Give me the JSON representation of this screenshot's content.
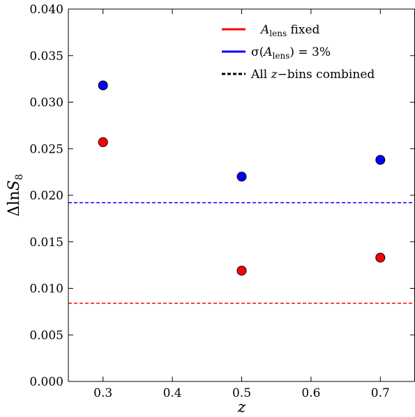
{
  "chart_data": {
    "type": "scatter",
    "xlabel": "z",
    "ylabel": "ΔlnS",
    "ylabel_subscript": "8",
    "xlim": [
      0.25,
      0.75
    ],
    "ylim": [
      0.0,
      0.04
    ],
    "xticks": [
      0.3,
      0.4,
      0.5,
      0.6,
      0.7
    ],
    "xtick_labels": [
      "0.3",
      "0.4",
      "0.5",
      "0.6",
      "0.7"
    ],
    "yticks": [
      0.0,
      0.005,
      0.01,
      0.015,
      0.02,
      0.025,
      0.03,
      0.035,
      0.04
    ],
    "ytick_labels": [
      "0.000",
      "0.005",
      "0.010",
      "0.015",
      "0.020",
      "0.025",
      "0.030",
      "0.035",
      "0.040"
    ],
    "grid": false,
    "legend_position": "top-right",
    "series": [
      {
        "legend_key": "fixed",
        "color": "#ff0000",
        "x": [
          0.3,
          0.5,
          0.7
        ],
        "y": [
          0.0257,
          0.0119,
          0.0133
        ]
      },
      {
        "legend_key": "sigma",
        "color": "#0000ff",
        "x": [
          0.3,
          0.5,
          0.7
        ],
        "y": [
          0.0318,
          0.022,
          0.0238
        ]
      }
    ],
    "combined_lines": [
      {
        "color": "#ff0000",
        "y": 0.0084
      },
      {
        "color": "#0000ff",
        "y": 0.0192
      }
    ],
    "legend": [
      {
        "key": "fixed",
        "color": "#ff0000",
        "style": "solid",
        "sym": "A",
        "sub": "lens",
        "text": " fixed"
      },
      {
        "key": "sigma",
        "color": "#0000ff",
        "style": "solid",
        "pre": "σ(",
        "sym": "A",
        "sub": "lens",
        "text": ") = 3%"
      },
      {
        "key": "combined",
        "color": "#000000",
        "style": "dashed",
        "pre": "All ",
        "sym": "z",
        "text": "−bins combined"
      }
    ]
  }
}
